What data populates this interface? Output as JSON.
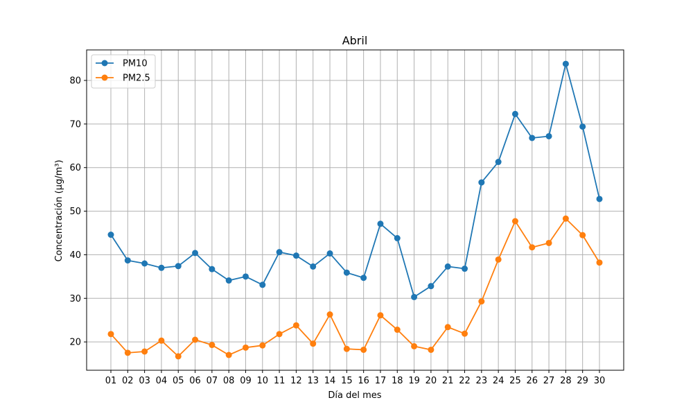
{
  "chart_data": {
    "type": "line",
    "title": "Abril",
    "xlabel": "Día del mes",
    "ylabel": "Concentración (µg/m³)",
    "categories": [
      "01",
      "02",
      "03",
      "04",
      "05",
      "06",
      "07",
      "08",
      "09",
      "10",
      "11",
      "12",
      "13",
      "14",
      "15",
      "16",
      "17",
      "18",
      "19",
      "20",
      "21",
      "22",
      "23",
      "24",
      "25",
      "26",
      "27",
      "28",
      "29",
      "30"
    ],
    "ylim": [
      13.5,
      87
    ],
    "yticks": [
      20,
      30,
      40,
      50,
      60,
      70,
      80
    ],
    "grid": true,
    "legend_position": "top-left",
    "series": [
      {
        "name": "PM10",
        "color": "#1f77b4",
        "values": [
          44.6,
          38.7,
          38.0,
          37.0,
          37.4,
          40.4,
          36.7,
          34.1,
          35.0,
          33.1,
          40.6,
          39.8,
          37.3,
          40.3,
          35.9,
          34.7,
          47.1,
          43.8,
          30.3,
          32.8,
          37.3,
          36.8,
          56.6,
          61.3,
          72.3,
          66.8,
          67.2,
          83.8,
          69.4,
          52.8
        ]
      },
      {
        "name": "PM2.5",
        "color": "#ff7f0e",
        "values": [
          21.8,
          17.5,
          17.8,
          20.3,
          16.7,
          20.5,
          19.3,
          17.0,
          18.7,
          19.2,
          21.8,
          23.8,
          19.6,
          26.3,
          18.4,
          18.2,
          26.1,
          22.8,
          19.0,
          18.2,
          23.4,
          21.9,
          29.3,
          38.9,
          47.7,
          41.7,
          42.7,
          48.3,
          44.5,
          38.2
        ]
      }
    ]
  }
}
